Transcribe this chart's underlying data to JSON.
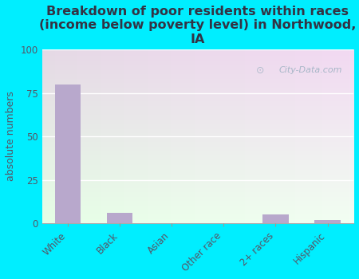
{
  "title": "Breakdown of poor residents within races\n(income below poverty level) in Northwood,\nIA",
  "categories": [
    "White",
    "Black",
    "Asian",
    "Other race",
    "2+ races",
    "Hispanic"
  ],
  "values": [
    80,
    6,
    0,
    0,
    5,
    2
  ],
  "bar_color": "#b8a8cc",
  "ylabel": "absolute numbers",
  "ylim": [
    0,
    100
  ],
  "yticks": [
    0,
    25,
    50,
    75,
    100
  ],
  "background_color": "#00eeff",
  "plot_bg_color": "#ddf0dd",
  "watermark": "City-Data.com",
  "title_fontsize": 11.5,
  "tick_fontsize": 8.5,
  "ylabel_fontsize": 9
}
